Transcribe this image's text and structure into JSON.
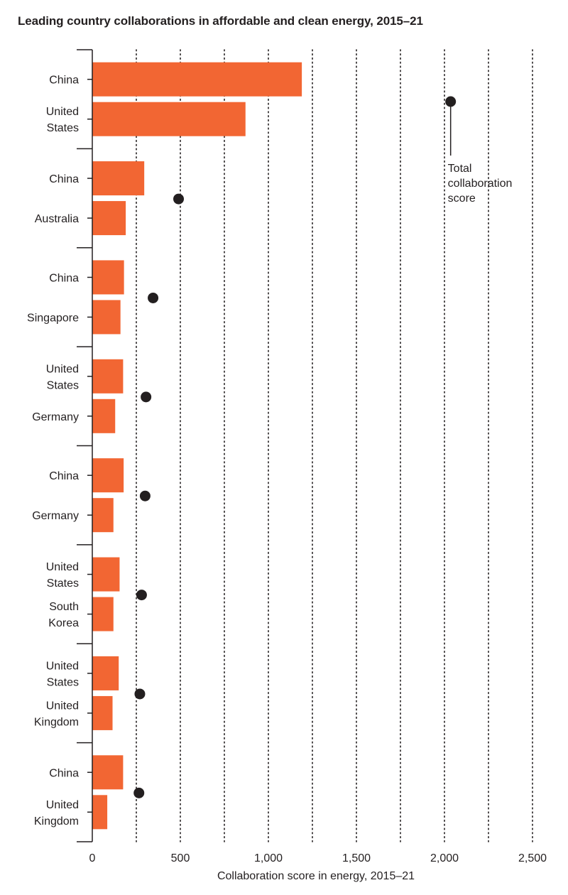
{
  "chart_data": {
    "type": "bar",
    "title": "Leading country collaborations in affordable and clean energy, 2015–21",
    "xlabel": "Collaboration score in energy, 2015–21",
    "ylabel": "",
    "xlim": [
      0,
      2500
    ],
    "x_ticks": [
      0,
      500,
      1000,
      1500,
      2000,
      2500
    ],
    "x_tick_labels": [
      "0",
      "500",
      "1,000",
      "1,500",
      "2,000",
      "2,500"
    ],
    "grid": true,
    "bar_color": "#f26633",
    "dot_color": "#231f20",
    "annotation": "Total collaboration score",
    "pairs": [
      {
        "countries": [
          {
            "name": "China",
            "value": 1190
          },
          {
            "name": "United States",
            "value": 870
          }
        ],
        "total": 2035
      },
      {
        "countries": [
          {
            "name": "China",
            "value": 295
          },
          {
            "name": "Australia",
            "value": 190
          }
        ],
        "total": 490
      },
      {
        "countries": [
          {
            "name": "China",
            "value": 180
          },
          {
            "name": "Singapore",
            "value": 160
          }
        ],
        "total": 345
      },
      {
        "countries": [
          {
            "name": "United States",
            "value": 175
          },
          {
            "name": "Germany",
            "value": 130
          }
        ],
        "total": 305
      },
      {
        "countries": [
          {
            "name": "China",
            "value": 178
          },
          {
            "name": "Germany",
            "value": 120
          }
        ],
        "total": 300
      },
      {
        "countries": [
          {
            "name": "United States",
            "value": 155
          },
          {
            "name": "South Korea",
            "value": 120
          }
        ],
        "total": 280
      },
      {
        "countries": [
          {
            "name": "United States",
            "value": 150
          },
          {
            "name": "United Kingdom",
            "value": 115
          }
        ],
        "total": 270
      },
      {
        "countries": [
          {
            "name": "China",
            "value": 175
          },
          {
            "name": "United Kingdom",
            "value": 85
          }
        ],
        "total": 265
      }
    ]
  }
}
